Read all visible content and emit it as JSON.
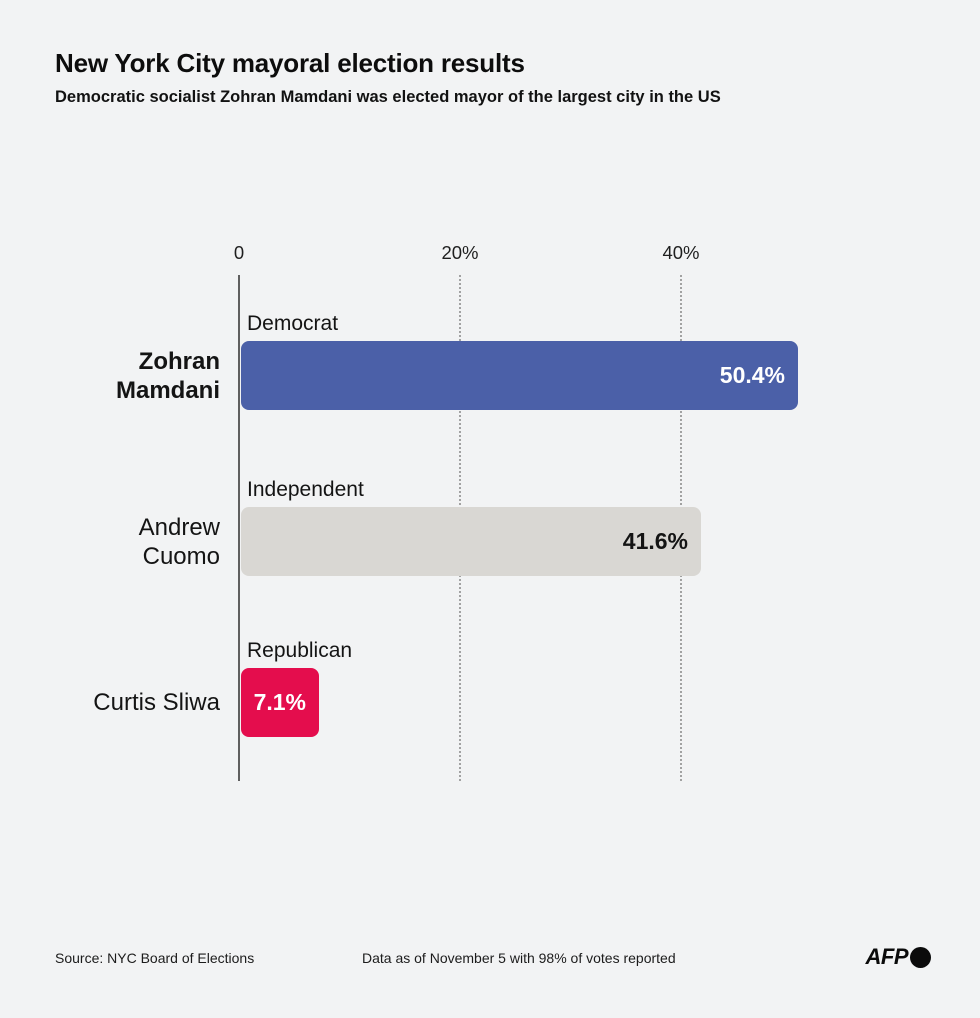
{
  "header": {
    "title": "New York City mayoral election results",
    "subtitle": "Democratic socialist Zohran Mamdani was elected mayor of the largest city in the US"
  },
  "chart_data": {
    "type": "bar",
    "orientation": "horizontal",
    "title": "New York City mayoral election results",
    "categories": [
      "Zohran Mamdani",
      "Andrew Cuomo",
      "Curtis Sliwa"
    ],
    "parties": [
      "Democrat",
      "Independent",
      "Republican"
    ],
    "values": [
      50.4,
      41.6,
      7.1
    ],
    "value_labels": [
      "50.4%",
      "41.6%",
      "7.1%"
    ],
    "bar_colors": [
      "#4b60a8",
      "#d9d7d3",
      "#e40d4d"
    ],
    "value_text_colors": [
      "#ffffff",
      "#141414",
      "#ffffff"
    ],
    "name_bold": [
      true,
      false,
      false
    ],
    "x_ticks": [
      "0",
      "20%",
      "40%"
    ],
    "x_tick_values": [
      0,
      20,
      40
    ],
    "xlim": [
      0,
      51
    ],
    "grid": "dotted vertical gridlines at 20% and 40%",
    "legend": "none",
    "xlabel": "",
    "ylabel": ""
  },
  "footer": {
    "source": "Source: NYC Board of Elections",
    "note": "Data as of November 5 with 98% of votes reported",
    "logo": "AFP"
  }
}
